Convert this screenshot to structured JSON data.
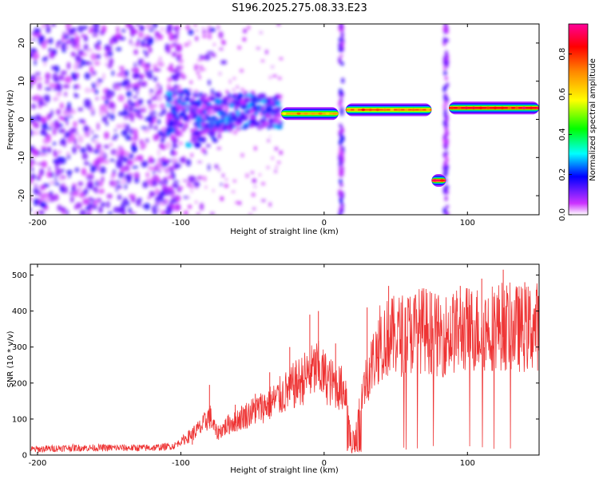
{
  "title": "S196.2025.275.08.33.E23",
  "chart_data": [
    {
      "type": "heatmap",
      "xlabel": "Height of straight line (km)",
      "ylabel": "Frequency (Hz)",
      "xlim": [
        -205,
        150
      ],
      "ylim": [
        -25,
        25
      ],
      "xticks": [
        -200,
        -100,
        0,
        100
      ],
      "xtick_labels": [
        "-200",
        "-100",
        "0",
        "100"
      ],
      "yticks": [
        -20,
        -10,
        0,
        10,
        20
      ],
      "ytick_labels": [
        "-20",
        "-10",
        "0",
        "10",
        "20"
      ],
      "colorbar": {
        "label": "Normalized spectral amplitude",
        "range": [
          0,
          0.95
        ],
        "ticks": [
          0.0,
          0.2,
          0.4,
          0.6,
          0.8
        ],
        "tick_labels": [
          "0.0",
          "0.2",
          "0.4",
          "0.6",
          "0.8"
        ],
        "colormap": [
          "#ffffff",
          "#cc33ff",
          "#0000ff",
          "#00ffff",
          "#00ff00",
          "#ffff00",
          "#ff8800",
          "#ff0000",
          "#ff0099"
        ]
      },
      "features": [
        {
          "name": "noise region",
          "x_range": [
            -205,
            -100
          ],
          "freq_range": [
            -25,
            25
          ],
          "amplitude": 0.1
        },
        {
          "name": "transition band",
          "x_range": [
            -110,
            -30
          ],
          "freq_center": 2,
          "amplitude": 0.25
        },
        {
          "name": "tone segment 1",
          "x_range": [
            -30,
            10
          ],
          "freq": 1.5,
          "amplitude": 0.7
        },
        {
          "name": "tone segment 2",
          "x_range": [
            15,
            75
          ],
          "freq": 2.5,
          "amplitude": 0.8
        },
        {
          "name": "tone segment 3",
          "x_range": [
            87,
            150
          ],
          "freq": 3,
          "amplitude": 0.9
        },
        {
          "name": "low tone",
          "x_range": [
            75,
            85
          ],
          "freq": -16,
          "amplitude": 0.95
        },
        {
          "name": "vertical stripe",
          "x": 12,
          "amplitude": 0.15
        },
        {
          "name": "vertical stripe",
          "x": 85,
          "amplitude": 0.12
        }
      ]
    },
    {
      "type": "line",
      "xlabel": "Height of straight line (km)",
      "ylabel": "SNR (10 * v/v)",
      "xlim": [
        -205,
        150
      ],
      "ylim": [
        0,
        530
      ],
      "xticks": [
        -200,
        -100,
        0,
        100
      ],
      "xtick_labels": [
        "-200",
        "-100",
        "0",
        "100"
      ],
      "yticks": [
        0,
        100,
        200,
        300,
        400,
        500
      ],
      "ytick_labels": [
        "0",
        "100",
        "200",
        "300",
        "400",
        "500"
      ],
      "series": [
        {
          "name": "SNR",
          "color": "#ee3333",
          "x": [
            -205,
            -180,
            -150,
            -120,
            -105,
            -95,
            -85,
            -80,
            -75,
            -65,
            -55,
            -45,
            -35,
            -25,
            -15,
            -5,
            5,
            15,
            20,
            25,
            30,
            40,
            50,
            60,
            70,
            80,
            90,
            100,
            110,
            120,
            130,
            140,
            150
          ],
          "values": [
            15,
            20,
            20,
            20,
            25,
            50,
            80,
            110,
            60,
            90,
            110,
            130,
            150,
            180,
            210,
            240,
            200,
            180,
            50,
            150,
            220,
            320,
            330,
            340,
            350,
            330,
            340,
            350,
            350,
            360,
            355,
            350,
            360
          ],
          "peaks": [
            -92,
            -80,
            -62,
            -48,
            -38,
            -24,
            -10,
            -4,
            8,
            30,
            45,
            60,
            75,
            95,
            110,
            125,
            140
          ],
          "peak_values": [
            70,
            195,
            140,
            170,
            230,
            300,
            390,
            400,
            310,
            410,
            470,
            420,
            450,
            470,
            490,
            515,
            480
          ]
        }
      ]
    }
  ]
}
